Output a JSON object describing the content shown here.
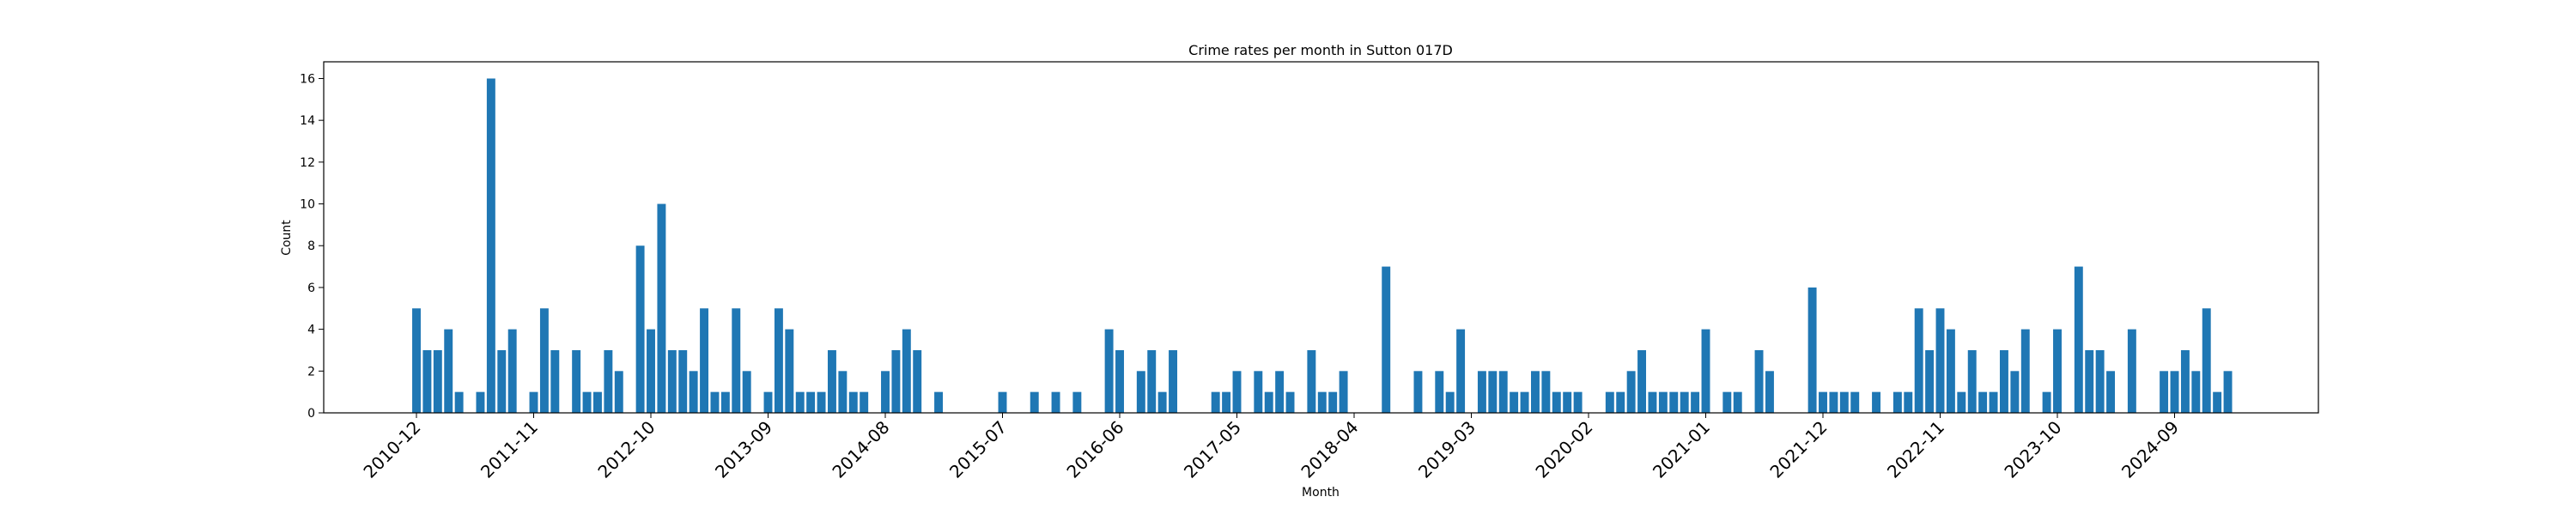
{
  "chart_data": {
    "type": "bar",
    "title": "Crime rates per month in Sutton 017D",
    "xlabel": "Month",
    "ylabel": "Count",
    "ylim": [
      0,
      16.8
    ],
    "yticks": [
      0,
      2,
      4,
      6,
      8,
      10,
      12,
      14,
      16
    ],
    "xtick_labels": [
      "2010-12",
      "2011-11",
      "2012-10",
      "2013-09",
      "2014-08",
      "2015-07",
      "2016-06",
      "2017-05",
      "2018-04",
      "2019-03",
      "2020-02",
      "2021-01",
      "2021-12",
      "2022-11",
      "2023-10",
      "2024-09"
    ],
    "bar_color": "#1f77b4",
    "grid": false,
    "bars": [
      {
        "x": "2010-12",
        "y": 5
      },
      {
        "x": "2011-01",
        "y": 3
      },
      {
        "x": "2011-02",
        "y": 3
      },
      {
        "x": "2011-03",
        "y": 4
      },
      {
        "x": "2011-04",
        "y": 1
      },
      {
        "x": "2011-06",
        "y": 1
      },
      {
        "x": "2011-07",
        "y": 16
      },
      {
        "x": "2011-08",
        "y": 3
      },
      {
        "x": "2011-09",
        "y": 4
      },
      {
        "x": "2011-11",
        "y": 1
      },
      {
        "x": "2011-12",
        "y": 5
      },
      {
        "x": "2012-01",
        "y": 3
      },
      {
        "x": "2012-03",
        "y": 3
      },
      {
        "x": "2012-04",
        "y": 1
      },
      {
        "x": "2012-05",
        "y": 1
      },
      {
        "x": "2012-06",
        "y": 3
      },
      {
        "x": "2012-07",
        "y": 2
      },
      {
        "x": "2012-09",
        "y": 8
      },
      {
        "x": "2012-10",
        "y": 4
      },
      {
        "x": "2012-11",
        "y": 10
      },
      {
        "x": "2012-12",
        "y": 3
      },
      {
        "x": "2013-01",
        "y": 3
      },
      {
        "x": "2013-02",
        "y": 2
      },
      {
        "x": "2013-03",
        "y": 5
      },
      {
        "x": "2013-04",
        "y": 1
      },
      {
        "x": "2013-05",
        "y": 1
      },
      {
        "x": "2013-06",
        "y": 5
      },
      {
        "x": "2013-07",
        "y": 2
      },
      {
        "x": "2013-09",
        "y": 1
      },
      {
        "x": "2013-10",
        "y": 5
      },
      {
        "x": "2013-11",
        "y": 4
      },
      {
        "x": "2013-12",
        "y": 1
      },
      {
        "x": "2014-01",
        "y": 1
      },
      {
        "x": "2014-02",
        "y": 1
      },
      {
        "x": "2014-03",
        "y": 3
      },
      {
        "x": "2014-04",
        "y": 2
      },
      {
        "x": "2014-05",
        "y": 1
      },
      {
        "x": "2014-06",
        "y": 1
      },
      {
        "x": "2014-08",
        "y": 2
      },
      {
        "x": "2014-09",
        "y": 3
      },
      {
        "x": "2014-10",
        "y": 4
      },
      {
        "x": "2014-11",
        "y": 3
      },
      {
        "x": "2015-01",
        "y": 1
      },
      {
        "x": "2015-07",
        "y": 1
      },
      {
        "x": "2015-10",
        "y": 1
      },
      {
        "x": "2015-12",
        "y": 1
      },
      {
        "x": "2016-02",
        "y": 1
      },
      {
        "x": "2016-05",
        "y": 4
      },
      {
        "x": "2016-06",
        "y": 3
      },
      {
        "x": "2016-08",
        "y": 2
      },
      {
        "x": "2016-09",
        "y": 3
      },
      {
        "x": "2016-10",
        "y": 1
      },
      {
        "x": "2016-11",
        "y": 3
      },
      {
        "x": "2017-03",
        "y": 1
      },
      {
        "x": "2017-04",
        "y": 1
      },
      {
        "x": "2017-05",
        "y": 2
      },
      {
        "x": "2017-07",
        "y": 2
      },
      {
        "x": "2017-08",
        "y": 1
      },
      {
        "x": "2017-09",
        "y": 2
      },
      {
        "x": "2017-10",
        "y": 1
      },
      {
        "x": "2017-12",
        "y": 3
      },
      {
        "x": "2018-01",
        "y": 1
      },
      {
        "x": "2018-02",
        "y": 1
      },
      {
        "x": "2018-03",
        "y": 2
      },
      {
        "x": "2018-07",
        "y": 7
      },
      {
        "x": "2018-10",
        "y": 2
      },
      {
        "x": "2018-12",
        "y": 2
      },
      {
        "x": "2019-01",
        "y": 1
      },
      {
        "x": "2019-02",
        "y": 4
      },
      {
        "x": "2019-04",
        "y": 2
      },
      {
        "x": "2019-05",
        "y": 2
      },
      {
        "x": "2019-06",
        "y": 2
      },
      {
        "x": "2019-07",
        "y": 1
      },
      {
        "x": "2019-08",
        "y": 1
      },
      {
        "x": "2019-09",
        "y": 2
      },
      {
        "x": "2019-10",
        "y": 2
      },
      {
        "x": "2019-11",
        "y": 1
      },
      {
        "x": "2019-12",
        "y": 1
      },
      {
        "x": "2020-01",
        "y": 1
      },
      {
        "x": "2020-04",
        "y": 1
      },
      {
        "x": "2020-05",
        "y": 1
      },
      {
        "x": "2020-06",
        "y": 2
      },
      {
        "x": "2020-07",
        "y": 3
      },
      {
        "x": "2020-08",
        "y": 1
      },
      {
        "x": "2020-09",
        "y": 1
      },
      {
        "x": "2020-10",
        "y": 1
      },
      {
        "x": "2020-11",
        "y": 1
      },
      {
        "x": "2020-12",
        "y": 1
      },
      {
        "x": "2021-01",
        "y": 4
      },
      {
        "x": "2021-03",
        "y": 1
      },
      {
        "x": "2021-04",
        "y": 1
      },
      {
        "x": "2021-06",
        "y": 3
      },
      {
        "x": "2021-07",
        "y": 2
      },
      {
        "x": "2021-11",
        "y": 6
      },
      {
        "x": "2021-12",
        "y": 1
      },
      {
        "x": "2022-01",
        "y": 1
      },
      {
        "x": "2022-02",
        "y": 1
      },
      {
        "x": "2022-03",
        "y": 1
      },
      {
        "x": "2022-05",
        "y": 1
      },
      {
        "x": "2022-07",
        "y": 1
      },
      {
        "x": "2022-08",
        "y": 1
      },
      {
        "x": "2022-09",
        "y": 5
      },
      {
        "x": "2022-10",
        "y": 3
      },
      {
        "x": "2022-11",
        "y": 5
      },
      {
        "x": "2022-12",
        "y": 4
      },
      {
        "x": "2023-01",
        "y": 1
      },
      {
        "x": "2023-02",
        "y": 3
      },
      {
        "x": "2023-03",
        "y": 1
      },
      {
        "x": "2023-04",
        "y": 1
      },
      {
        "x": "2023-05",
        "y": 3
      },
      {
        "x": "2023-06",
        "y": 2
      },
      {
        "x": "2023-07",
        "y": 4
      },
      {
        "x": "2023-09",
        "y": 1
      },
      {
        "x": "2023-10",
        "y": 4
      },
      {
        "x": "2023-12",
        "y": 7
      },
      {
        "x": "2024-01",
        "y": 3
      },
      {
        "x": "2024-02",
        "y": 3
      },
      {
        "x": "2024-03",
        "y": 2
      },
      {
        "x": "2024-05",
        "y": 4
      },
      {
        "x": "2024-08",
        "y": 2
      },
      {
        "x": "2024-09",
        "y": 2
      },
      {
        "x": "2024-10",
        "y": 3
      },
      {
        "x": "2024-11",
        "y": 2
      },
      {
        "x": "2024-12",
        "y": 5
      },
      {
        "x": "2025-01",
        "y": 1
      },
      {
        "x": "2025-02",
        "y": 2
      }
    ]
  }
}
